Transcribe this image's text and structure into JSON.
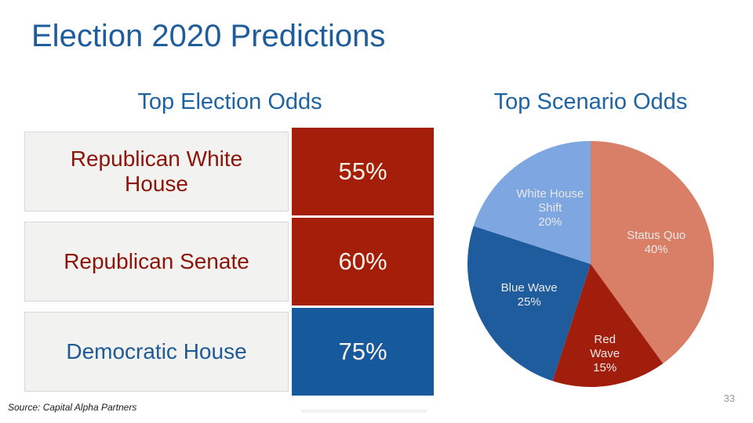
{
  "slide": {
    "title": "Election 2020 Predictions"
  },
  "colors": {
    "title_blue": "#1F5C9C",
    "heading_blue": "#2063A2",
    "table_red": "#A41E0A",
    "table_blue": "#16599C",
    "label_red": "#8C140A",
    "label_blue": "#1E5A96",
    "cell_bg": "#F2F2F0",
    "cell_border": "#D7D7D5",
    "value_text": "#F9F3E8",
    "pie_label": "#E9E9E7"
  },
  "chart_data": [
    {
      "type": "table",
      "title": "Top Election Odds",
      "rows": [
        {
          "label": "Republican White House",
          "value": "55%",
          "value_pct": 55,
          "theme": "red"
        },
        {
          "label": "Republican Senate",
          "value": "60%",
          "value_pct": 60,
          "theme": "red"
        },
        {
          "label": "Democratic House",
          "value": "75%",
          "value_pct": 75,
          "theme": "blue"
        }
      ]
    },
    {
      "type": "pie",
      "title": "Top Scenario Odds",
      "categories": [
        "Status Quo",
        "Red Wave",
        "Blue Wave",
        "White House Shift"
      ],
      "values": [
        40,
        15,
        25,
        20
      ],
      "unit": "%",
      "start_angle_deg": 0,
      "direction": "clockwise",
      "legend_position": "none",
      "labels_inside": true,
      "slices": [
        {
          "name": "Status Quo",
          "value": 40,
          "color": "#D97E67",
          "label_lines": [
            "Status Quo",
            "40%"
          ],
          "label_radius": 0.56
        },
        {
          "name": "Red Wave",
          "value": 15,
          "color": "#A21E0C",
          "label_lines": [
            "Red",
            "Wave",
            "15%"
          ],
          "label_radius": 0.74
        },
        {
          "name": "Blue Wave",
          "value": 25,
          "color": "#1F5C9E",
          "label_lines": [
            "Blue Wave",
            "25%"
          ],
          "label_radius": 0.56
        },
        {
          "name": "White House Shift",
          "value": 20,
          "color": "#7EA6E0",
          "label_lines": [
            "White House",
            "Shift",
            "20%"
          ],
          "label_radius": 0.56
        }
      ]
    }
  ],
  "footer": {
    "source": "Source: Capital Alpha Partners",
    "page_number": "33"
  }
}
